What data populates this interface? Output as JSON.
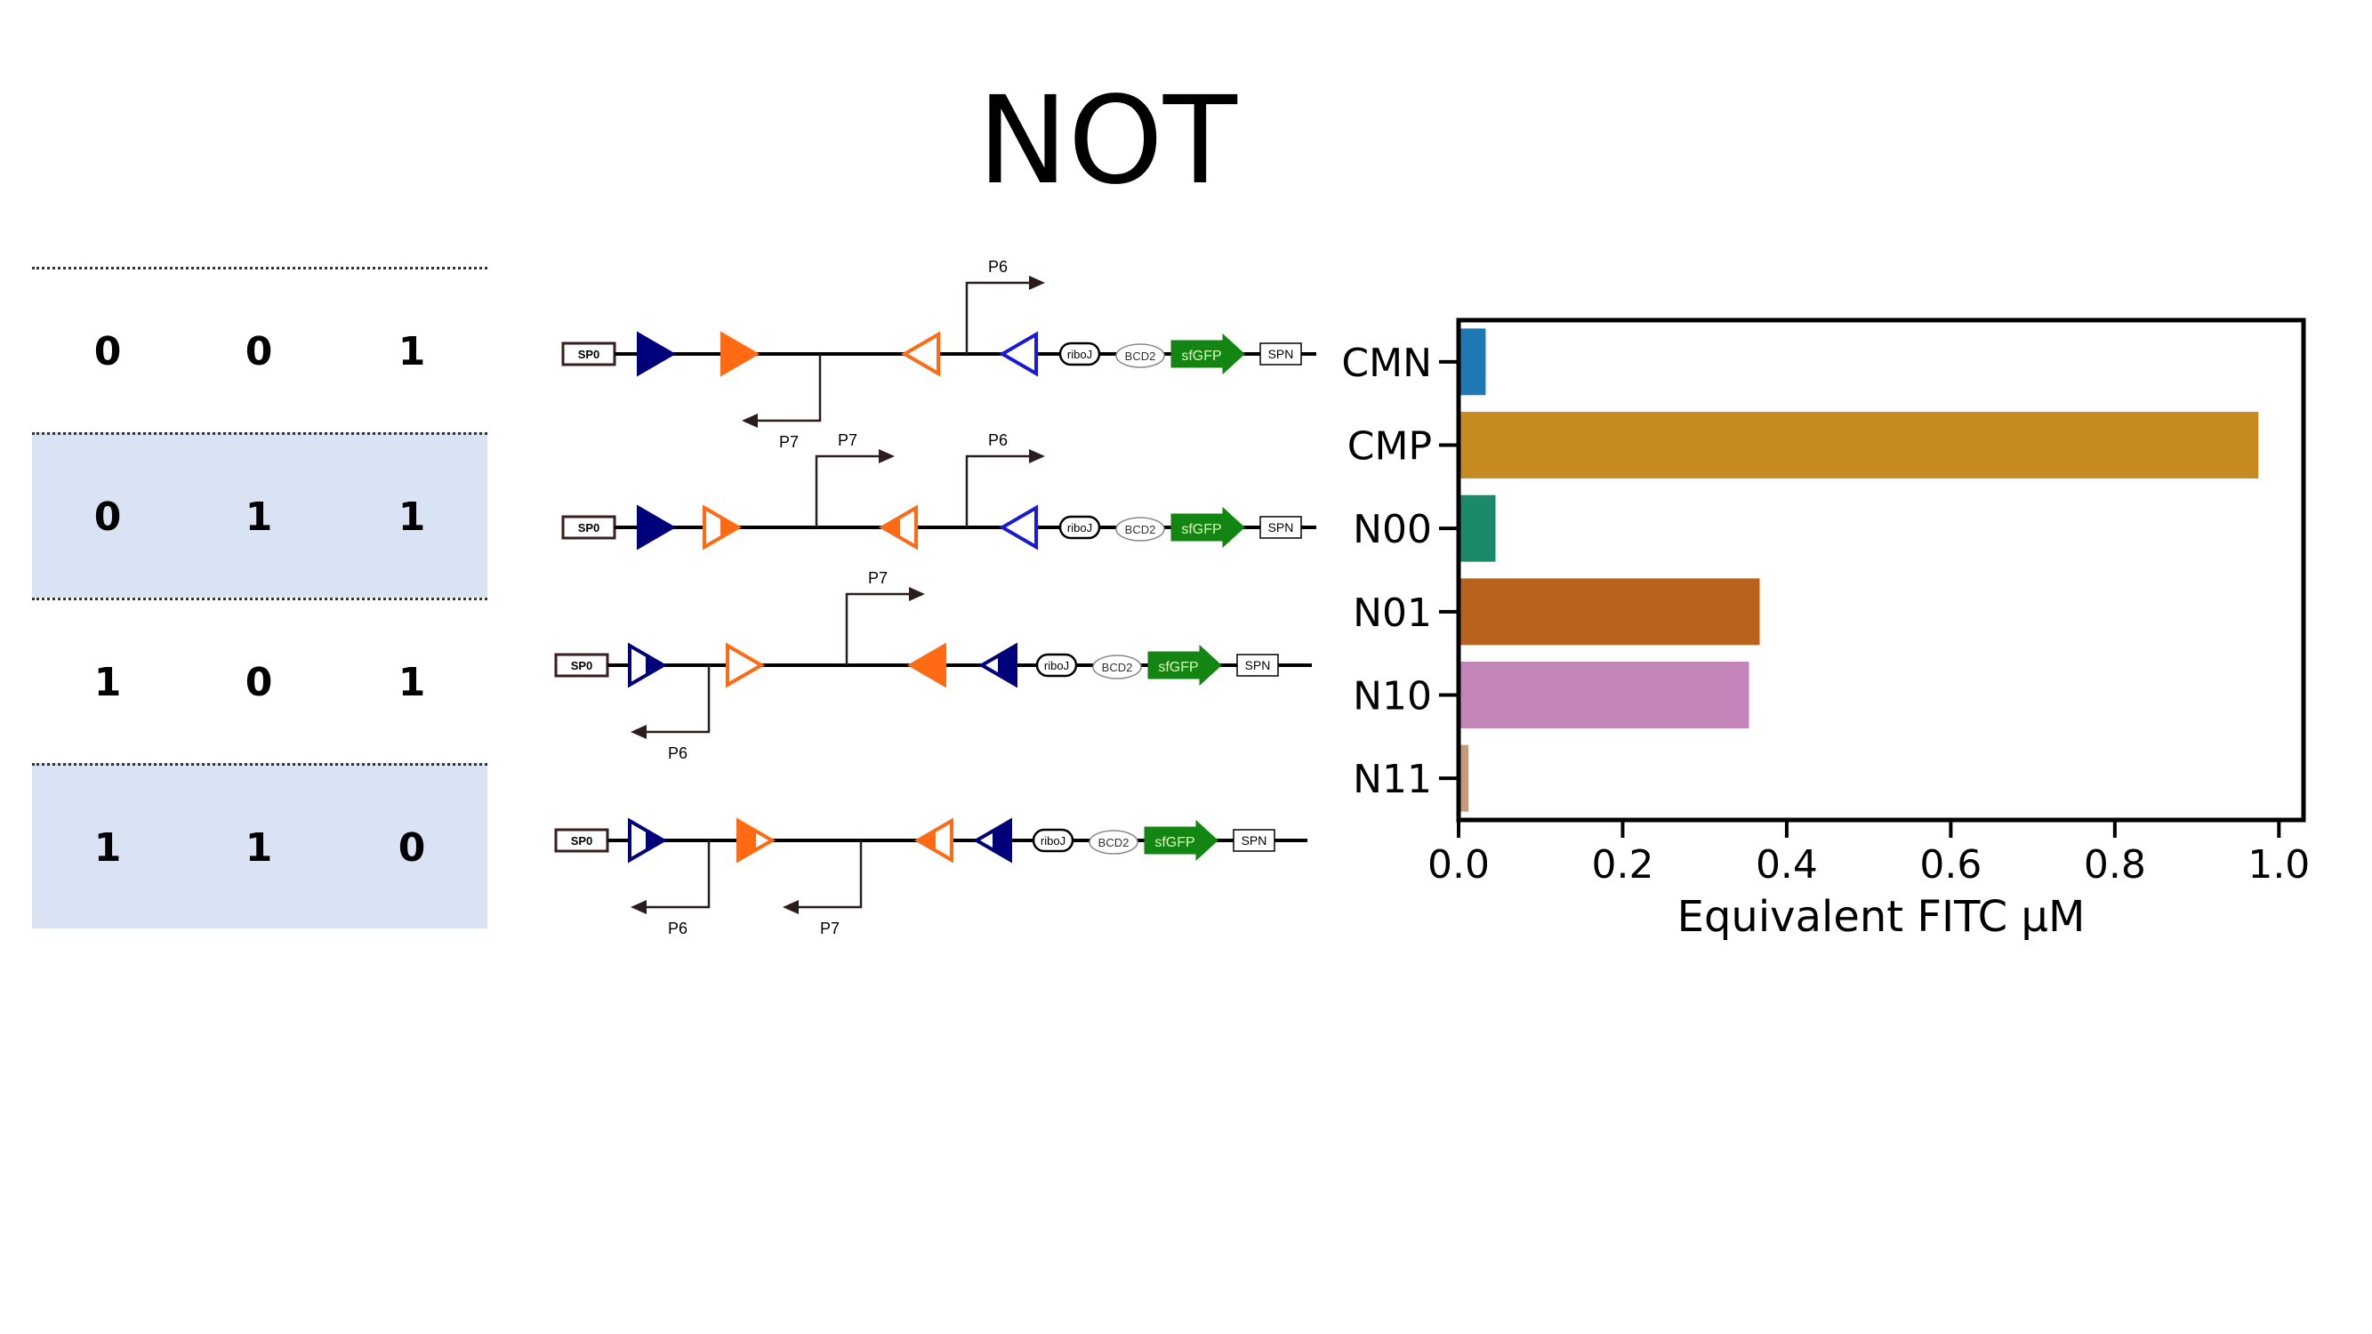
{
  "title": "NOT",
  "truth_table": [
    [
      "0",
      "0",
      "1"
    ],
    [
      "0",
      "1",
      "1"
    ],
    [
      "1",
      "0",
      "1"
    ],
    [
      "1",
      "1",
      "0"
    ]
  ],
  "circuit_labels": {
    "promoter_box": "SP0",
    "ribozyme": "riboJ",
    "rbs": "BCD2",
    "reporter": "sfGFP",
    "terminator": "SPN",
    "p6": "P6",
    "p7": "P7"
  },
  "colors": {
    "navy": "#00007a",
    "orange": "#ff6a13",
    "blue": "#1a1ad6",
    "green": "#138513",
    "table_shade": "#dae3f3"
  },
  "chart_data": {
    "type": "bar",
    "orientation": "horizontal",
    "categories": [
      "CMN",
      "CMP",
      "N00",
      "N01",
      "N10",
      "N11"
    ],
    "values": [
      0.033,
      0.975,
      0.045,
      0.367,
      0.354,
      0.012
    ],
    "colors": [
      "#1f77b4",
      "#c68a20",
      "#1b8a6b",
      "#b8621e",
      "#c384b8",
      "#c49a78"
    ],
    "xlabel": "Equivalent FITC μM",
    "ylabel": "",
    "xlim": [
      0,
      1.03
    ],
    "xticks": [
      "0.0",
      "0.2",
      "0.4",
      "0.6",
      "0.8",
      "1.0"
    ],
    "grid": false
  }
}
